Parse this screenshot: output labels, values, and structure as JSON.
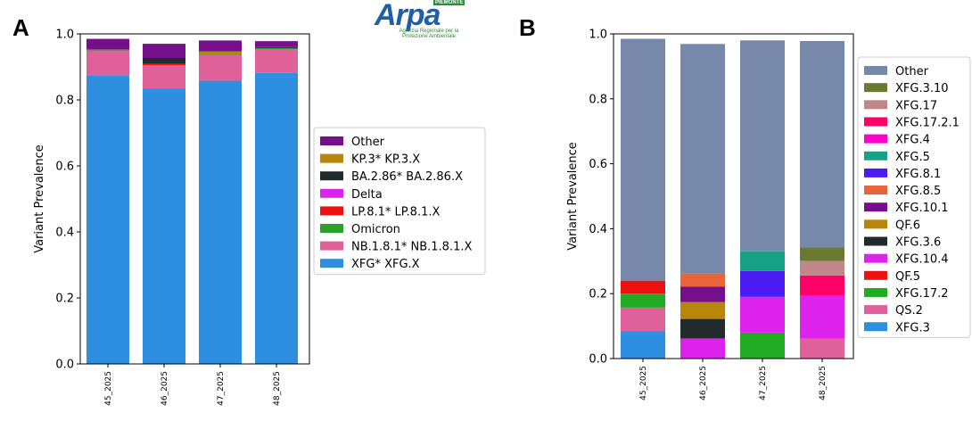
{
  "logo": {
    "text": "Arpa",
    "region": "PIEMONTE",
    "subtitle": "Agenzia Regionale per la Protezione Ambientale"
  },
  "panels": {
    "a_letter": "A",
    "b_letter": "B"
  },
  "chart_data": [
    {
      "type": "bar",
      "stacked": true,
      "panel": "A",
      "categories": [
        "45_2025",
        "46_2025",
        "47_2025",
        "48_2025"
      ],
      "ylabel": "Variant Prevalence",
      "xlabel": "",
      "ylim": [
        0,
        1.0
      ],
      "yticks": [
        "0.0",
        "0.2",
        "0.4",
        "0.6",
        "0.8",
        "1.0"
      ],
      "legend_position": "right",
      "series": [
        {
          "name": "XFG* XFG.X",
          "color": "#2e8fe0",
          "values": [
            0.875,
            0.835,
            0.858,
            0.882
          ]
        },
        {
          "name": "NB.1.8.1* NB.1.8.1.X",
          "color": "#e0609a",
          "values": [
            0.075,
            0.07,
            0.078,
            0.072
          ]
        },
        {
          "name": "Omicron",
          "color": "#2ca02c",
          "values": [
            0.003,
            0.0,
            0.003,
            0.003
          ]
        },
        {
          "name": "LP.8.1* LP.8.1.X",
          "color": "#ee1111",
          "values": [
            0.0,
            0.004,
            0.0,
            0.0
          ]
        },
        {
          "name": "Delta",
          "color": "#dd22ee",
          "values": [
            0.0,
            0.0,
            0.0,
            0.0
          ]
        },
        {
          "name": "BA.2.86* BA.2.86.X",
          "color": "#222b2b",
          "values": [
            0.0,
            0.018,
            0.0,
            0.003
          ]
        },
        {
          "name": "KP.3* KP.3.X",
          "color": "#b8860b",
          "values": [
            0.0,
            0.0,
            0.008,
            0.0
          ]
        },
        {
          "name": "Other",
          "color": "#750f8a",
          "values": [
            0.032,
            0.043,
            0.033,
            0.018
          ]
        }
      ]
    },
    {
      "type": "bar",
      "stacked": true,
      "panel": "B",
      "categories": [
        "45_2025",
        "46_2025",
        "47_2025",
        "48_2025"
      ],
      "ylabel": "Variant Prevalence",
      "xlabel": "",
      "ylim": [
        0,
        1.0
      ],
      "yticks": [
        "0.0",
        "0.2",
        "0.4",
        "0.6",
        "0.8",
        "1.0"
      ],
      "legend_position": "right",
      "series": [
        {
          "name": "XFG.3",
          "color": "#2e8fe0",
          "values": [
            0.085,
            0.0,
            0.0,
            0.0
          ]
        },
        {
          "name": "QS.2",
          "color": "#e0609a",
          "values": [
            0.072,
            0.0,
            0.0,
            0.062
          ]
        },
        {
          "name": "XFG.17.2",
          "color": "#22aa22",
          "values": [
            0.043,
            0.0,
            0.08,
            0.0
          ]
        },
        {
          "name": "QF.5",
          "color": "#ee1111",
          "values": [
            0.04,
            0.0,
            0.0,
            0.0
          ]
        },
        {
          "name": "XFG.10.4",
          "color": "#dd22ee",
          "values": [
            0.0,
            0.062,
            0.11,
            0.132
          ]
        },
        {
          "name": "XFG.3.6",
          "color": "#222b2b",
          "values": [
            0.0,
            0.06,
            0.0,
            0.0
          ]
        },
        {
          "name": "QF.6",
          "color": "#b8860b",
          "values": [
            0.0,
            0.052,
            0.0,
            0.0
          ]
        },
        {
          "name": "XFG.10.1",
          "color": "#750f8a",
          "values": [
            0.0,
            0.048,
            0.0,
            0.0
          ]
        },
        {
          "name": "XFG.8.5",
          "color": "#e8653a",
          "values": [
            0.0,
            0.04,
            0.0,
            0.0
          ]
        },
        {
          "name": "XFG.8.1",
          "color": "#4b1cf2",
          "values": [
            0.0,
            0.0,
            0.08,
            0.0
          ]
        },
        {
          "name": "XFG.5",
          "color": "#16a085",
          "values": [
            0.0,
            0.0,
            0.06,
            0.0
          ]
        },
        {
          "name": "XFG.4",
          "color": "#ff00cc",
          "values": [
            0.0,
            0.0,
            0.0,
            0.0
          ]
        },
        {
          "name": "XFG.17.2.1",
          "color": "#ff0066",
          "values": [
            0.0,
            0.0,
            0.0,
            0.062
          ]
        },
        {
          "name": "XFG.17",
          "color": "#c08888",
          "values": [
            0.0,
            0.0,
            0.0,
            0.045
          ]
        },
        {
          "name": "XFG.3.10",
          "color": "#6b7a32",
          "values": [
            0.0,
            0.0,
            0.0,
            0.042
          ]
        },
        {
          "name": "Other",
          "color": "#7788aa",
          "values": [
            0.745,
            0.707,
            0.65,
            0.635
          ]
        }
      ]
    }
  ]
}
